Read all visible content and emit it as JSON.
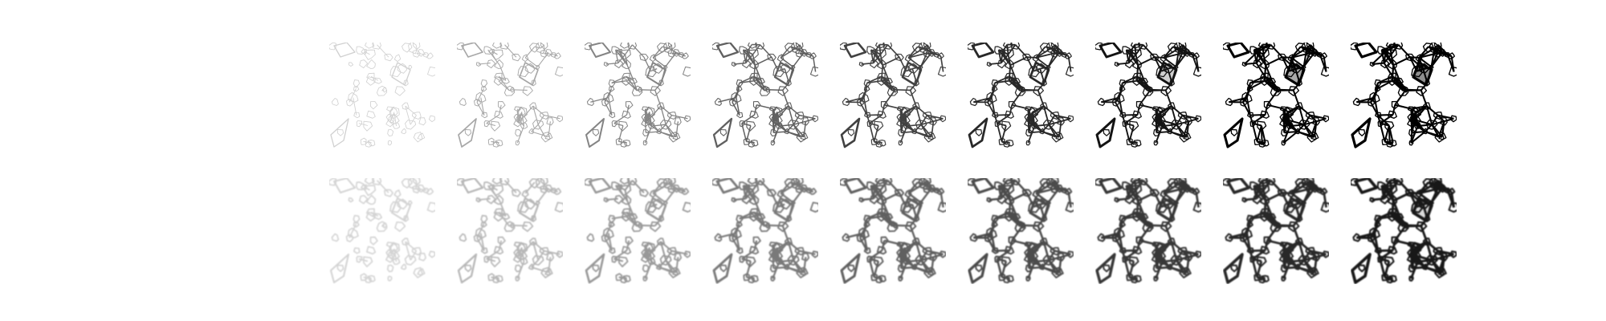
{
  "figure": {
    "background": "#ffffff",
    "ink_color": "#000000",
    "rows": [
      {
        "name": "row-sharp",
        "style": "sharp",
        "panels": [
          {
            "darkness": 0.06
          },
          {
            "darkness": 0.22
          },
          {
            "darkness": 0.36
          },
          {
            "darkness": 0.5
          },
          {
            "darkness": 0.62
          },
          {
            "darkness": 0.72
          },
          {
            "darkness": 0.8
          },
          {
            "darkness": 0.87
          },
          {
            "darkness": 0.92
          }
        ]
      },
      {
        "name": "row-blurred",
        "style": "blurred",
        "panels": [
          {
            "darkness": 0.05
          },
          {
            "darkness": 0.16
          },
          {
            "darkness": 0.28
          },
          {
            "darkness": 0.4
          },
          {
            "darkness": 0.5
          },
          {
            "darkness": 0.58
          },
          {
            "darkness": 0.66
          },
          {
            "darkness": 0.72
          },
          {
            "darkness": 0.78
          }
        ]
      }
    ]
  }
}
